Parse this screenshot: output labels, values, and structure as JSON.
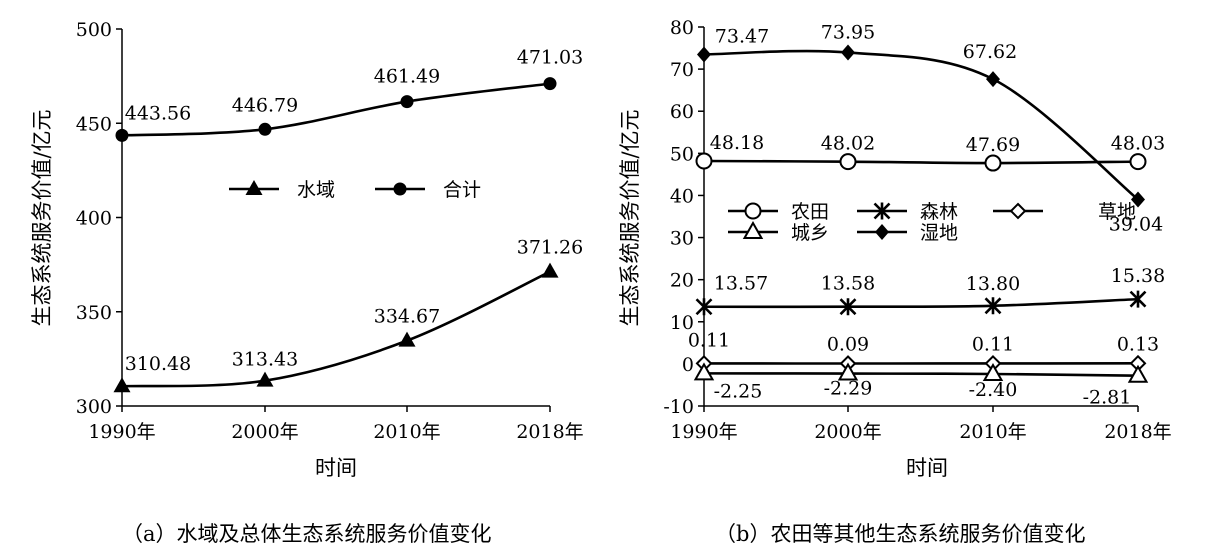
{
  "chart_data": [
    {
      "type": "line",
      "caption": "（a）水域及总体生态系统服务价值变化",
      "xlabel": "时间",
      "ylabel": "生态系统服务价值/亿元",
      "categories": [
        "1990年",
        "2000年",
        "2010年",
        "2018年"
      ],
      "x": [
        1990,
        2000,
        2010,
        2018
      ],
      "ylim": [
        300,
        500
      ],
      "yticks": [
        300,
        350,
        400,
        450,
        500
      ],
      "legend_position": "center",
      "series": [
        {
          "name": "水域",
          "marker": "triangle",
          "values": [
            310.48,
            313.43,
            334.67,
            371.26
          ],
          "labels": [
            "310.48",
            "313.43",
            "334.67",
            "371.26"
          ]
        },
        {
          "name": "合计",
          "marker": "circle",
          "values": [
            443.56,
            446.79,
            461.49,
            471.03
          ],
          "labels": [
            "443.56",
            "446.79",
            "461.49",
            "471.03"
          ]
        }
      ]
    },
    {
      "type": "line",
      "caption": "（b）农田等其他生态系统服务价值变化",
      "xlabel": "时间",
      "ylabel": "生态系统服务价值/亿元",
      "categories": [
        "1990年",
        "2000年",
        "2010年",
        "2018年"
      ],
      "x": [
        1990,
        2000,
        2010,
        2018
      ],
      "ylim": [
        -10,
        80
      ],
      "yticks": [
        -10,
        0,
        10,
        20,
        30,
        40,
        50,
        60,
        70,
        80
      ],
      "legend_position": "center-left",
      "series": [
        {
          "name": "农田",
          "marker": "circle-open",
          "values": [
            48.18,
            48.02,
            47.69,
            48.03
          ],
          "labels": [
            "48.18",
            "48.02",
            "47.69",
            "48.03"
          ]
        },
        {
          "name": "森林",
          "marker": "star",
          "values": [
            13.57,
            13.58,
            13.8,
            15.38
          ],
          "labels": [
            "13.57",
            "13.58",
            "13.80",
            "15.38"
          ]
        },
        {
          "name": "草地",
          "marker": "diamond-open",
          "values": [
            0.11,
            0.09,
            0.11,
            0.13
          ],
          "labels": [
            "0.11",
            "0.09",
            "0.11",
            "0.13"
          ]
        },
        {
          "name": "城乡",
          "marker": "triangle-open",
          "values": [
            -2.25,
            -2.29,
            -2.4,
            -2.81
          ],
          "labels": [
            "-2.25",
            "-2.29",
            "-2.40",
            "-2.81"
          ]
        },
        {
          "name": "湿地",
          "marker": "diamond",
          "values": [
            73.47,
            73.95,
            67.62,
            39.04
          ],
          "labels": [
            "73.47",
            "73.95",
            "67.62",
            "39.04"
          ]
        }
      ]
    }
  ]
}
